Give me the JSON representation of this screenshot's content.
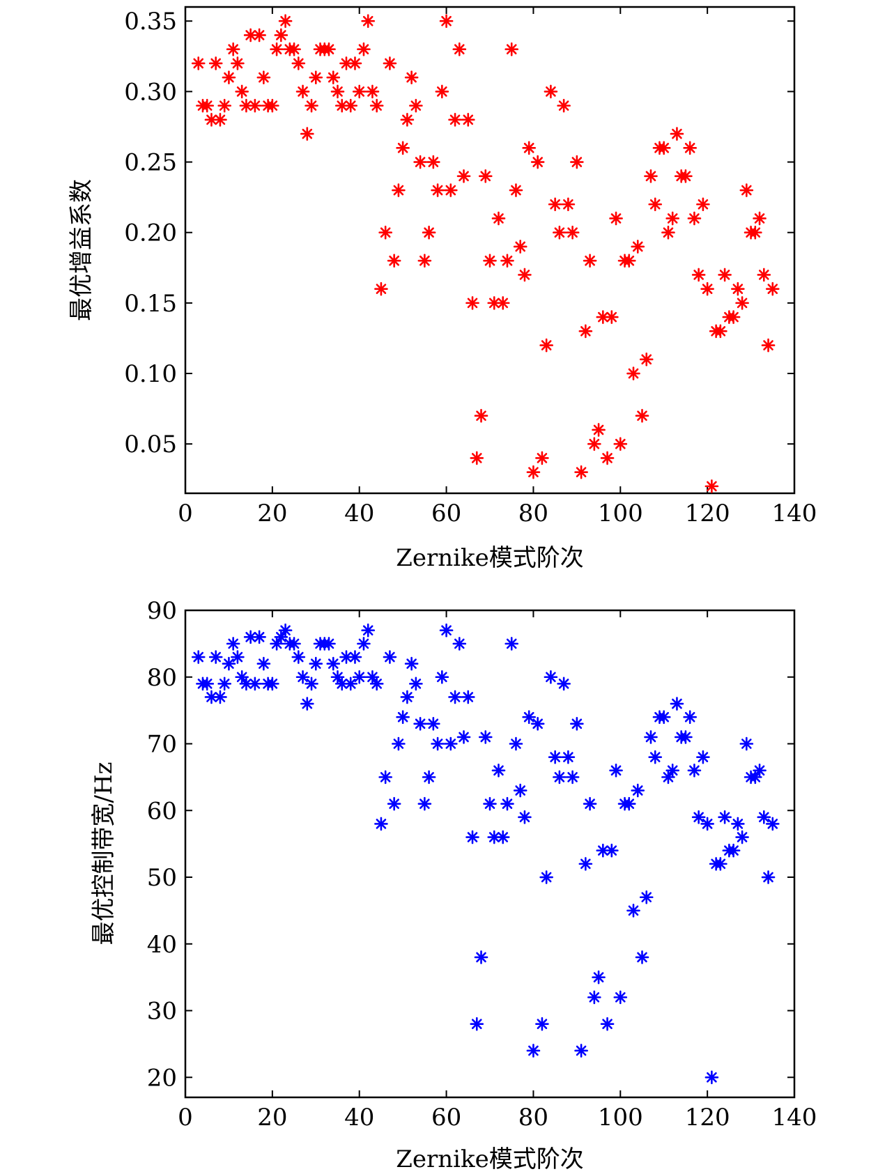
{
  "chart_data": [
    {
      "type": "scatter",
      "xlabel": "Zernike模式阶次",
      "ylabel": "最优增益系数",
      "xlim": [
        0,
        140
      ],
      "ylim": [
        0.015,
        0.36
      ],
      "xticks": [
        0,
        20,
        40,
        60,
        80,
        100,
        120,
        140
      ],
      "xtick_labels": [
        "0",
        "20",
        "40",
        "60",
        "80",
        "100",
        "120",
        "140"
      ],
      "yticks": [
        0.05,
        0.1,
        0.15,
        0.2,
        0.25,
        0.3,
        0.35
      ],
      "ytick_labels": [
        "0.05",
        "0.10",
        "0.15",
        "0.20",
        "0.25",
        "0.30",
        "0.35"
      ],
      "marker": "*",
      "color": "#ff0000",
      "grid": false,
      "points": [
        [
          3,
          0.32
        ],
        [
          4,
          0.29
        ],
        [
          5,
          0.29
        ],
        [
          6,
          0.28
        ],
        [
          7,
          0.32
        ],
        [
          8,
          0.28
        ],
        [
          9,
          0.29
        ],
        [
          10,
          0.31
        ],
        [
          11,
          0.33
        ],
        [
          12,
          0.32
        ],
        [
          13,
          0.3
        ],
        [
          14,
          0.29
        ],
        [
          15,
          0.34
        ],
        [
          16,
          0.29
        ],
        [
          17,
          0.34
        ],
        [
          18,
          0.31
        ],
        [
          19,
          0.29
        ],
        [
          20,
          0.29
        ],
        [
          21,
          0.33
        ],
        [
          22,
          0.34
        ],
        [
          23,
          0.35
        ],
        [
          24,
          0.33
        ],
        [
          25,
          0.33
        ],
        [
          26,
          0.32
        ],
        [
          27,
          0.3
        ],
        [
          28,
          0.27
        ],
        [
          29,
          0.29
        ],
        [
          30,
          0.31
        ],
        [
          31,
          0.33
        ],
        [
          32,
          0.33
        ],
        [
          33,
          0.33
        ],
        [
          34,
          0.31
        ],
        [
          35,
          0.3
        ],
        [
          36,
          0.29
        ],
        [
          37,
          0.32
        ],
        [
          38,
          0.29
        ],
        [
          39,
          0.32
        ],
        [
          40,
          0.3
        ],
        [
          41,
          0.33
        ],
        [
          42,
          0.35
        ],
        [
          43,
          0.3
        ],
        [
          44,
          0.29
        ],
        [
          45,
          0.16
        ],
        [
          46,
          0.2
        ],
        [
          47,
          0.32
        ],
        [
          48,
          0.18
        ],
        [
          49,
          0.23
        ],
        [
          50,
          0.26
        ],
        [
          51,
          0.28
        ],
        [
          52,
          0.31
        ],
        [
          53,
          0.29
        ],
        [
          54,
          0.25
        ],
        [
          55,
          0.18
        ],
        [
          56,
          0.2
        ],
        [
          57,
          0.25
        ],
        [
          58,
          0.23
        ],
        [
          59,
          0.3
        ],
        [
          60,
          0.35
        ],
        [
          61,
          0.23
        ],
        [
          62,
          0.28
        ],
        [
          63,
          0.33
        ],
        [
          64,
          0.24
        ],
        [
          65,
          0.28
        ],
        [
          66,
          0.15
        ],
        [
          67,
          0.04
        ],
        [
          68,
          0.07
        ],
        [
          69,
          0.24
        ],
        [
          70,
          0.18
        ],
        [
          71,
          0.15
        ],
        [
          72,
          0.21
        ],
        [
          73,
          0.15
        ],
        [
          74,
          0.18
        ],
        [
          75,
          0.33
        ],
        [
          76,
          0.23
        ],
        [
          77,
          0.19
        ],
        [
          78,
          0.17
        ],
        [
          79,
          0.26
        ],
        [
          80,
          0.03
        ],
        [
          81,
          0.25
        ],
        [
          82,
          0.04
        ],
        [
          83,
          0.12
        ],
        [
          84,
          0.3
        ],
        [
          85,
          0.22
        ],
        [
          86,
          0.2
        ],
        [
          87,
          0.29
        ],
        [
          88,
          0.22
        ],
        [
          89,
          0.2
        ],
        [
          90,
          0.25
        ],
        [
          91,
          0.03
        ],
        [
          92,
          0.13
        ],
        [
          93,
          0.18
        ],
        [
          94,
          0.05
        ],
        [
          95,
          0.06
        ],
        [
          96,
          0.14
        ],
        [
          97,
          0.04
        ],
        [
          98,
          0.14
        ],
        [
          99,
          0.21
        ],
        [
          100,
          0.05
        ],
        [
          101,
          0.18
        ],
        [
          102,
          0.18
        ],
        [
          103,
          0.1
        ],
        [
          104,
          0.19
        ],
        [
          105,
          0.07
        ],
        [
          106,
          0.11
        ],
        [
          107,
          0.24
        ],
        [
          108,
          0.22
        ],
        [
          109,
          0.26
        ],
        [
          110,
          0.26
        ],
        [
          111,
          0.2
        ],
        [
          112,
          0.21
        ],
        [
          113,
          0.27
        ],
        [
          114,
          0.24
        ],
        [
          115,
          0.24
        ],
        [
          116,
          0.26
        ],
        [
          117,
          0.21
        ],
        [
          118,
          0.17
        ],
        [
          119,
          0.22
        ],
        [
          120,
          0.16
        ],
        [
          121,
          0.02
        ],
        [
          122,
          0.13
        ],
        [
          123,
          0.13
        ],
        [
          124,
          0.17
        ],
        [
          125,
          0.14
        ],
        [
          126,
          0.14
        ],
        [
          127,
          0.16
        ],
        [
          128,
          0.15
        ],
        [
          129,
          0.23
        ],
        [
          130,
          0.2
        ],
        [
          131,
          0.2
        ],
        [
          132,
          0.21
        ],
        [
          133,
          0.17
        ],
        [
          134,
          0.12
        ],
        [
          135,
          0.16
        ]
      ]
    },
    {
      "type": "scatter",
      "xlabel": "Zernike模式阶次",
      "ylabel": "最优控制带宽/Hz",
      "xlim": [
        0,
        140
      ],
      "ylim": [
        17,
        90
      ],
      "xticks": [
        0,
        20,
        40,
        60,
        80,
        100,
        120,
        140
      ],
      "xtick_labels": [
        "0",
        "20",
        "40",
        "60",
        "80",
        "100",
        "120",
        "140"
      ],
      "yticks": [
        20,
        30,
        40,
        50,
        60,
        70,
        80,
        90
      ],
      "ytick_labels": [
        "20",
        "30",
        "40",
        "50",
        "60",
        "70",
        "80",
        "90"
      ],
      "marker": "*",
      "color": "#0000ff",
      "grid": false,
      "points": [
        [
          3,
          83
        ],
        [
          4,
          79
        ],
        [
          5,
          79
        ],
        [
          6,
          77
        ],
        [
          7,
          83
        ],
        [
          8,
          77
        ],
        [
          9,
          79
        ],
        [
          10,
          82
        ],
        [
          11,
          85
        ],
        [
          12,
          83
        ],
        [
          13,
          80
        ],
        [
          14,
          79
        ],
        [
          15,
          86
        ],
        [
          16,
          79
        ],
        [
          17,
          86
        ],
        [
          18,
          82
        ],
        [
          19,
          79
        ],
        [
          20,
          79
        ],
        [
          21,
          85
        ],
        [
          22,
          86
        ],
        [
          23,
          87
        ],
        [
          24,
          85
        ],
        [
          25,
          85
        ],
        [
          26,
          83
        ],
        [
          27,
          80
        ],
        [
          28,
          76
        ],
        [
          29,
          79
        ],
        [
          30,
          82
        ],
        [
          31,
          85
        ],
        [
          32,
          85
        ],
        [
          33,
          85
        ],
        [
          34,
          82
        ],
        [
          35,
          80
        ],
        [
          36,
          79
        ],
        [
          37,
          83
        ],
        [
          38,
          79
        ],
        [
          39,
          83
        ],
        [
          40,
          80
        ],
        [
          41,
          85
        ],
        [
          42,
          87
        ],
        [
          43,
          80
        ],
        [
          44,
          79
        ],
        [
          45,
          58
        ],
        [
          46,
          65
        ],
        [
          47,
          83
        ],
        [
          48,
          61
        ],
        [
          49,
          70
        ],
        [
          50,
          74
        ],
        [
          51,
          77
        ],
        [
          52,
          82
        ],
        [
          53,
          79
        ],
        [
          54,
          73
        ],
        [
          55,
          61
        ],
        [
          56,
          65
        ],
        [
          57,
          73
        ],
        [
          58,
          70
        ],
        [
          59,
          80
        ],
        [
          60,
          87
        ],
        [
          61,
          70
        ],
        [
          62,
          77
        ],
        [
          63,
          85
        ],
        [
          64,
          71
        ],
        [
          65,
          77
        ],
        [
          66,
          56
        ],
        [
          67,
          28
        ],
        [
          68,
          38
        ],
        [
          69,
          71
        ],
        [
          70,
          61
        ],
        [
          71,
          56
        ],
        [
          72,
          66
        ],
        [
          73,
          56
        ],
        [
          74,
          61
        ],
        [
          75,
          85
        ],
        [
          76,
          70
        ],
        [
          77,
          63
        ],
        [
          78,
          59
        ],
        [
          79,
          74
        ],
        [
          80,
          24
        ],
        [
          81,
          73
        ],
        [
          82,
          28
        ],
        [
          83,
          50
        ],
        [
          84,
          80
        ],
        [
          85,
          68
        ],
        [
          86,
          65
        ],
        [
          87,
          79
        ],
        [
          88,
          68
        ],
        [
          89,
          65
        ],
        [
          90,
          73
        ],
        [
          91,
          24
        ],
        [
          92,
          52
        ],
        [
          93,
          61
        ],
        [
          94,
          32
        ],
        [
          95,
          35
        ],
        [
          96,
          54
        ],
        [
          97,
          28
        ],
        [
          98,
          54
        ],
        [
          99,
          66
        ],
        [
          100,
          32
        ],
        [
          101,
          61
        ],
        [
          102,
          61
        ],
        [
          103,
          45
        ],
        [
          104,
          63
        ],
        [
          105,
          38
        ],
        [
          106,
          47
        ],
        [
          107,
          71
        ],
        [
          108,
          68
        ],
        [
          109,
          74
        ],
        [
          110,
          74
        ],
        [
          111,
          65
        ],
        [
          112,
          66
        ],
        [
          113,
          76
        ],
        [
          114,
          71
        ],
        [
          115,
          71
        ],
        [
          116,
          74
        ],
        [
          117,
          66
        ],
        [
          118,
          59
        ],
        [
          119,
          68
        ],
        [
          120,
          58
        ],
        [
          121,
          20
        ],
        [
          122,
          52
        ],
        [
          123,
          52
        ],
        [
          124,
          59
        ],
        [
          125,
          54
        ],
        [
          126,
          54
        ],
        [
          127,
          58
        ],
        [
          128,
          56
        ],
        [
          129,
          70
        ],
        [
          130,
          65
        ],
        [
          131,
          65
        ],
        [
          132,
          66
        ],
        [
          133,
          59
        ],
        [
          134,
          50
        ],
        [
          135,
          58
        ]
      ]
    }
  ]
}
